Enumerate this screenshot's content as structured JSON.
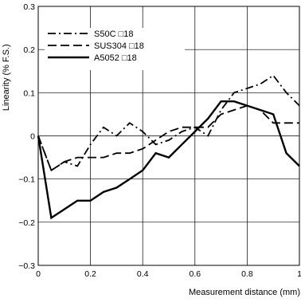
{
  "chart_data": {
    "type": "line",
    "xlabel": "Measurement distance (mm)",
    "ylabel": "Linearity (% F.S.)",
    "xlim": [
      0,
      1
    ],
    "ylim": [
      -0.3,
      0.3
    ],
    "x_ticks": [
      0,
      0.2,
      0.4,
      0.6,
      0.8,
      1
    ],
    "x_tick_labels": [
      "0",
      "0.2",
      "0.4",
      "0.6",
      "0.8",
      "1"
    ],
    "y_ticks": [
      -0.3,
      -0.2,
      -0.1,
      0,
      0.1,
      0.2,
      0.3
    ],
    "y_tick_labels": [
      "−0.3",
      "−0.2",
      "−0.1",
      "0",
      "0.1",
      "0.2",
      "0.3"
    ],
    "grid": true,
    "legend_position": "top-left",
    "series": [
      {
        "name": "S50C □18",
        "dash": "dash-dot",
        "color": "#000000",
        "x": [
          0,
          0.05,
          0.1,
          0.15,
          0.2,
          0.25,
          0.3,
          0.35,
          0.4,
          0.45,
          0.5,
          0.55,
          0.6,
          0.65,
          0.7,
          0.75,
          0.8,
          0.85,
          0.9,
          0.95,
          1.0
        ],
        "y": [
          0,
          -0.08,
          -0.06,
          -0.07,
          -0.02,
          0.02,
          0.0,
          0.03,
          0.01,
          -0.02,
          -0.01,
          0.01,
          0.02,
          0.0,
          0.06,
          0.1,
          0.11,
          0.12,
          0.14,
          0.1,
          0.07
        ]
      },
      {
        "name": "SUS304 □18",
        "dash": "dash",
        "color": "#000000",
        "x": [
          0,
          0.05,
          0.1,
          0.15,
          0.2,
          0.25,
          0.3,
          0.35,
          0.4,
          0.45,
          0.5,
          0.55,
          0.6,
          0.65,
          0.7,
          0.75,
          0.8,
          0.85,
          0.9,
          0.95,
          1.0
        ],
        "y": [
          0,
          -0.08,
          -0.06,
          -0.05,
          -0.05,
          -0.05,
          -0.04,
          -0.04,
          -0.03,
          -0.01,
          0.01,
          0.02,
          0.02,
          0.02,
          0.05,
          0.06,
          0.07,
          0.06,
          0.03,
          0.03,
          0.03
        ]
      },
      {
        "name": "A5052 □18",
        "dash": "solid",
        "color": "#000000",
        "x": [
          0,
          0.05,
          0.1,
          0.15,
          0.2,
          0.25,
          0.3,
          0.35,
          0.4,
          0.45,
          0.5,
          0.55,
          0.6,
          0.65,
          0.7,
          0.75,
          0.8,
          0.85,
          0.9,
          0.95,
          1.0
        ],
        "y": [
          0,
          -0.19,
          -0.17,
          -0.15,
          -0.15,
          -0.13,
          -0.12,
          -0.1,
          -0.08,
          -0.04,
          -0.05,
          -0.02,
          0.01,
          0.04,
          0.08,
          0.08,
          0.07,
          0.06,
          0.05,
          -0.04,
          -0.07
        ]
      }
    ]
  }
}
